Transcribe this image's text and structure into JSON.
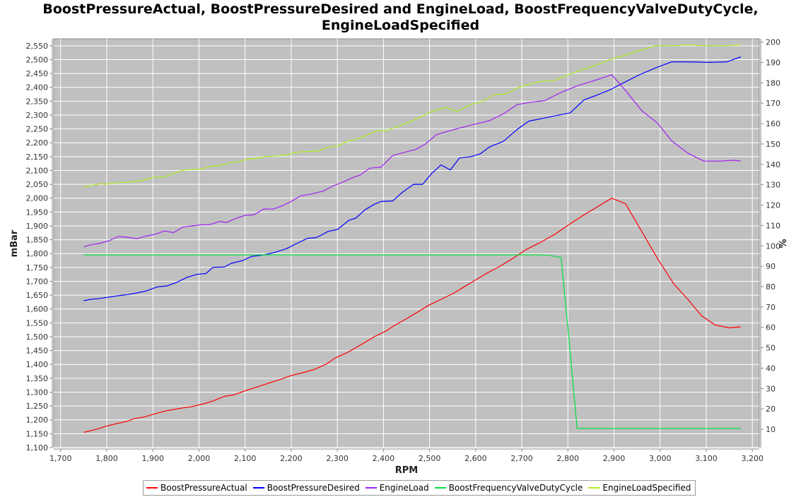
{
  "chart_data": {
    "type": "line",
    "title_lines": [
      "BoostPressureActual, BoostPressureDesired and EngineLoad, BoostFrequencyValveDutyCycle,",
      "EngineLoadSpecified"
    ],
    "xlabel": "RPM",
    "ylabel": "mBar",
    "y2label": "%",
    "xlim": [
      1685,
      3215
    ],
    "ylim": [
      1100,
      2575
    ],
    "y2lim": [
      1.0,
      201.6
    ],
    "xticks": [
      "1,700",
      "1,800",
      "1,900",
      "2,000",
      "2,100",
      "2,200",
      "2,300",
      "2,400",
      "2,500",
      "2,600",
      "2,700",
      "2,800",
      "2,900",
      "3,000",
      "3,100",
      "3,200"
    ],
    "yticks": [
      "1,100",
      "1,150",
      "1,200",
      "1,250",
      "1,300",
      "1,350",
      "1,400",
      "1,450",
      "1,500",
      "1,550",
      "1,600",
      "1,650",
      "1,700",
      "1,750",
      "1,800",
      "1,850",
      "1,900",
      "1,950",
      "2,000",
      "2,050",
      "2,100",
      "2,150",
      "2,200",
      "2,250",
      "2,300",
      "2,350",
      "2,400",
      "2,450",
      "2,500",
      "2,550"
    ],
    "y2ticks": [
      "10",
      "20",
      "30",
      "40",
      "50",
      "60",
      "70",
      "80",
      "90",
      "100",
      "110",
      "120",
      "130",
      "140",
      "150",
      "160",
      "170",
      "180",
      "190",
      "200"
    ],
    "grid": true,
    "legend_position": "bottom",
    "colors": {
      "plot_background": "#c0c0c0",
      "grid": "#ffffff",
      "BoostPressureActual": "#ff0000",
      "BoostPressureDesired": "#0000ff",
      "EngineLoad": "#a020f0",
      "BoostFrequencyValveDutyCycle": "#00e040",
      "EngineLoadSpecified": "#b0f020"
    },
    "series": [
      {
        "name": "BoostPressureActual",
        "axis": "left",
        "x": [
          1750,
          1780,
          1800,
          1825,
          1845,
          1860,
          1880,
          1905,
          1930,
          1960,
          1985,
          2010,
          2030,
          2055,
          2075,
          2100,
          2125,
          2150,
          2175,
          2200,
          2225,
          2250,
          2275,
          2295,
          2320,
          2340,
          2360,
          2380,
          2405,
          2425,
          2450,
          2475,
          2500,
          2525,
          2550,
          2575,
          2600,
          2625,
          2650,
          2680,
          2710,
          2740,
          2770,
          2800,
          2830,
          2860,
          2895,
          2925,
          2960,
          2995,
          3030,
          3060,
          3090,
          3120,
          3150,
          3175
        ],
        "y": [
          1155,
          1167,
          1178,
          1188,
          1195,
          1205,
          1210,
          1222,
          1233,
          1242,
          1248,
          1258,
          1268,
          1285,
          1290,
          1305,
          1318,
          1332,
          1345,
          1360,
          1370,
          1382,
          1400,
          1423,
          1442,
          1460,
          1480,
          1500,
          1520,
          1542,
          1565,
          1590,
          1615,
          1635,
          1655,
          1680,
          1705,
          1730,
          1752,
          1782,
          1815,
          1840,
          1868,
          1902,
          1935,
          1965,
          2000,
          1980,
          1880,
          1780,
          1690,
          1635,
          1575,
          1542,
          1532,
          1536
        ]
      },
      {
        "name": "BoostPressureDesired",
        "axis": "left",
        "x": [
          1750,
          1765,
          1785,
          1805,
          1825,
          1845,
          1865,
          1885,
          1910,
          1930,
          1950,
          1975,
          1995,
          2015,
          2030,
          2055,
          2070,
          2095,
          2115,
          2140,
          2165,
          2190,
          2210,
          2235,
          2255,
          2280,
          2300,
          2325,
          2340,
          2360,
          2380,
          2395,
          2420,
          2440,
          2465,
          2485,
          2505,
          2525,
          2545,
          2565,
          2590,
          2610,
          2630,
          2660,
          2690,
          2715,
          2745,
          2775,
          2805,
          2835,
          2860,
          2890,
          2925,
          2955,
          2990,
          3025,
          3065,
          3105,
          3145,
          3175
        ],
        "y": [
          1630,
          1635,
          1638,
          1643,
          1648,
          1652,
          1658,
          1665,
          1680,
          1683,
          1695,
          1715,
          1725,
          1728,
          1750,
          1752,
          1765,
          1775,
          1790,
          1795,
          1805,
          1818,
          1835,
          1855,
          1858,
          1880,
          1887,
          1920,
          1928,
          1958,
          1978,
          1988,
          1990,
          2020,
          2050,
          2050,
          2090,
          2120,
          2102,
          2145,
          2150,
          2160,
          2185,
          2205,
          2248,
          2278,
          2288,
          2298,
          2308,
          2355,
          2370,
          2390,
          2420,
          2445,
          2470,
          2492,
          2492,
          2490,
          2492,
          2510
        ]
      },
      {
        "name": "EngineLoad",
        "axis": "right",
        "x": [
          1750,
          1765,
          1785,
          1805,
          1825,
          1845,
          1865,
          1885,
          1905,
          1925,
          1945,
          1965,
          1985,
          2005,
          2025,
          2045,
          2060,
          2080,
          2100,
          2120,
          2140,
          2160,
          2180,
          2200,
          2220,
          2245,
          2270,
          2290,
          2310,
          2330,
          2350,
          2370,
          2395,
          2420,
          2445,
          2470,
          2490,
          2515,
          2540,
          2570,
          2600,
          2630,
          2660,
          2690,
          2720,
          2750,
          2785,
          2820,
          2860,
          2895,
          2925,
          2960,
          2995,
          3025,
          3060,
          3095,
          3130,
          3160,
          3175
        ],
        "y": [
          99.5,
          100.5,
          101.3,
          102.5,
          104.6,
          104.2,
          103.5,
          104.8,
          105.7,
          107.3,
          106.5,
          109.2,
          109.8,
          110.3,
          110.5,
          112.0,
          111.5,
          113.5,
          115.0,
          115.3,
          118.1,
          118.0,
          119.6,
          121.8,
          124.5,
          125.5,
          126.9,
          129.4,
          131.1,
          133.2,
          134.8,
          138.1,
          138.7,
          144.3,
          145.9,
          147.3,
          149.8,
          154.6,
          156.3,
          158.1,
          159.8,
          161.4,
          164.8,
          169.3,
          170.5,
          171.3,
          175.3,
          178.5,
          181.3,
          184.0,
          176.2,
          166.4,
          160.1,
          151.5,
          145.5,
          141.6,
          141.6,
          142.0,
          141.6
        ]
      },
      {
        "name": "BoostFrequencyValveDutyCycle",
        "axis": "right",
        "x": [
          1750,
          2740,
          2760,
          2785,
          2800,
          2820,
          3175
        ],
        "y": [
          95.6,
          95.6,
          95.3,
          94.3,
          60.0,
          10.4,
          10.4
        ]
      },
      {
        "name": "EngineLoadSpecified",
        "axis": "right",
        "x": [
          1750,
          1765,
          1785,
          1800,
          1820,
          1840,
          1860,
          1880,
          1905,
          1925,
          1945,
          1965,
          1985,
          2005,
          2025,
          2045,
          2065,
          2085,
          2105,
          2125,
          2145,
          2170,
          2190,
          2210,
          2235,
          2260,
          2280,
          2300,
          2325,
          2345,
          2365,
          2385,
          2405,
          2430,
          2455,
          2480,
          2505,
          2535,
          2560,
          2590,
          2615,
          2640,
          2665,
          2690,
          2715,
          2740,
          2770,
          2800,
          2830,
          2860,
          2890,
          2920,
          2955,
          2990,
          3025,
          3060,
          3100,
          3140,
          3175
        ],
        "y": [
          129.0,
          129.5,
          130.5,
          130.3,
          131.0,
          131.2,
          131.5,
          132.3,
          133.8,
          133.8,
          135.5,
          137.1,
          137.6,
          137.6,
          139.0,
          139.4,
          140.7,
          141.2,
          142.5,
          143.0,
          143.8,
          144.2,
          144.6,
          145.9,
          146.3,
          146.7,
          148.4,
          149.0,
          151.5,
          152.5,
          154.4,
          156.6,
          156.5,
          158.4,
          160.7,
          163.2,
          165.9,
          167.9,
          166.0,
          169.5,
          170.8,
          174.2,
          174.5,
          177.5,
          179.3,
          180.7,
          181.1,
          183.9,
          186.4,
          188.6,
          191.3,
          193.3,
          195.9,
          198.2,
          198.2,
          198.6,
          198.2,
          198.2,
          198.6
        ]
      }
    ]
  }
}
